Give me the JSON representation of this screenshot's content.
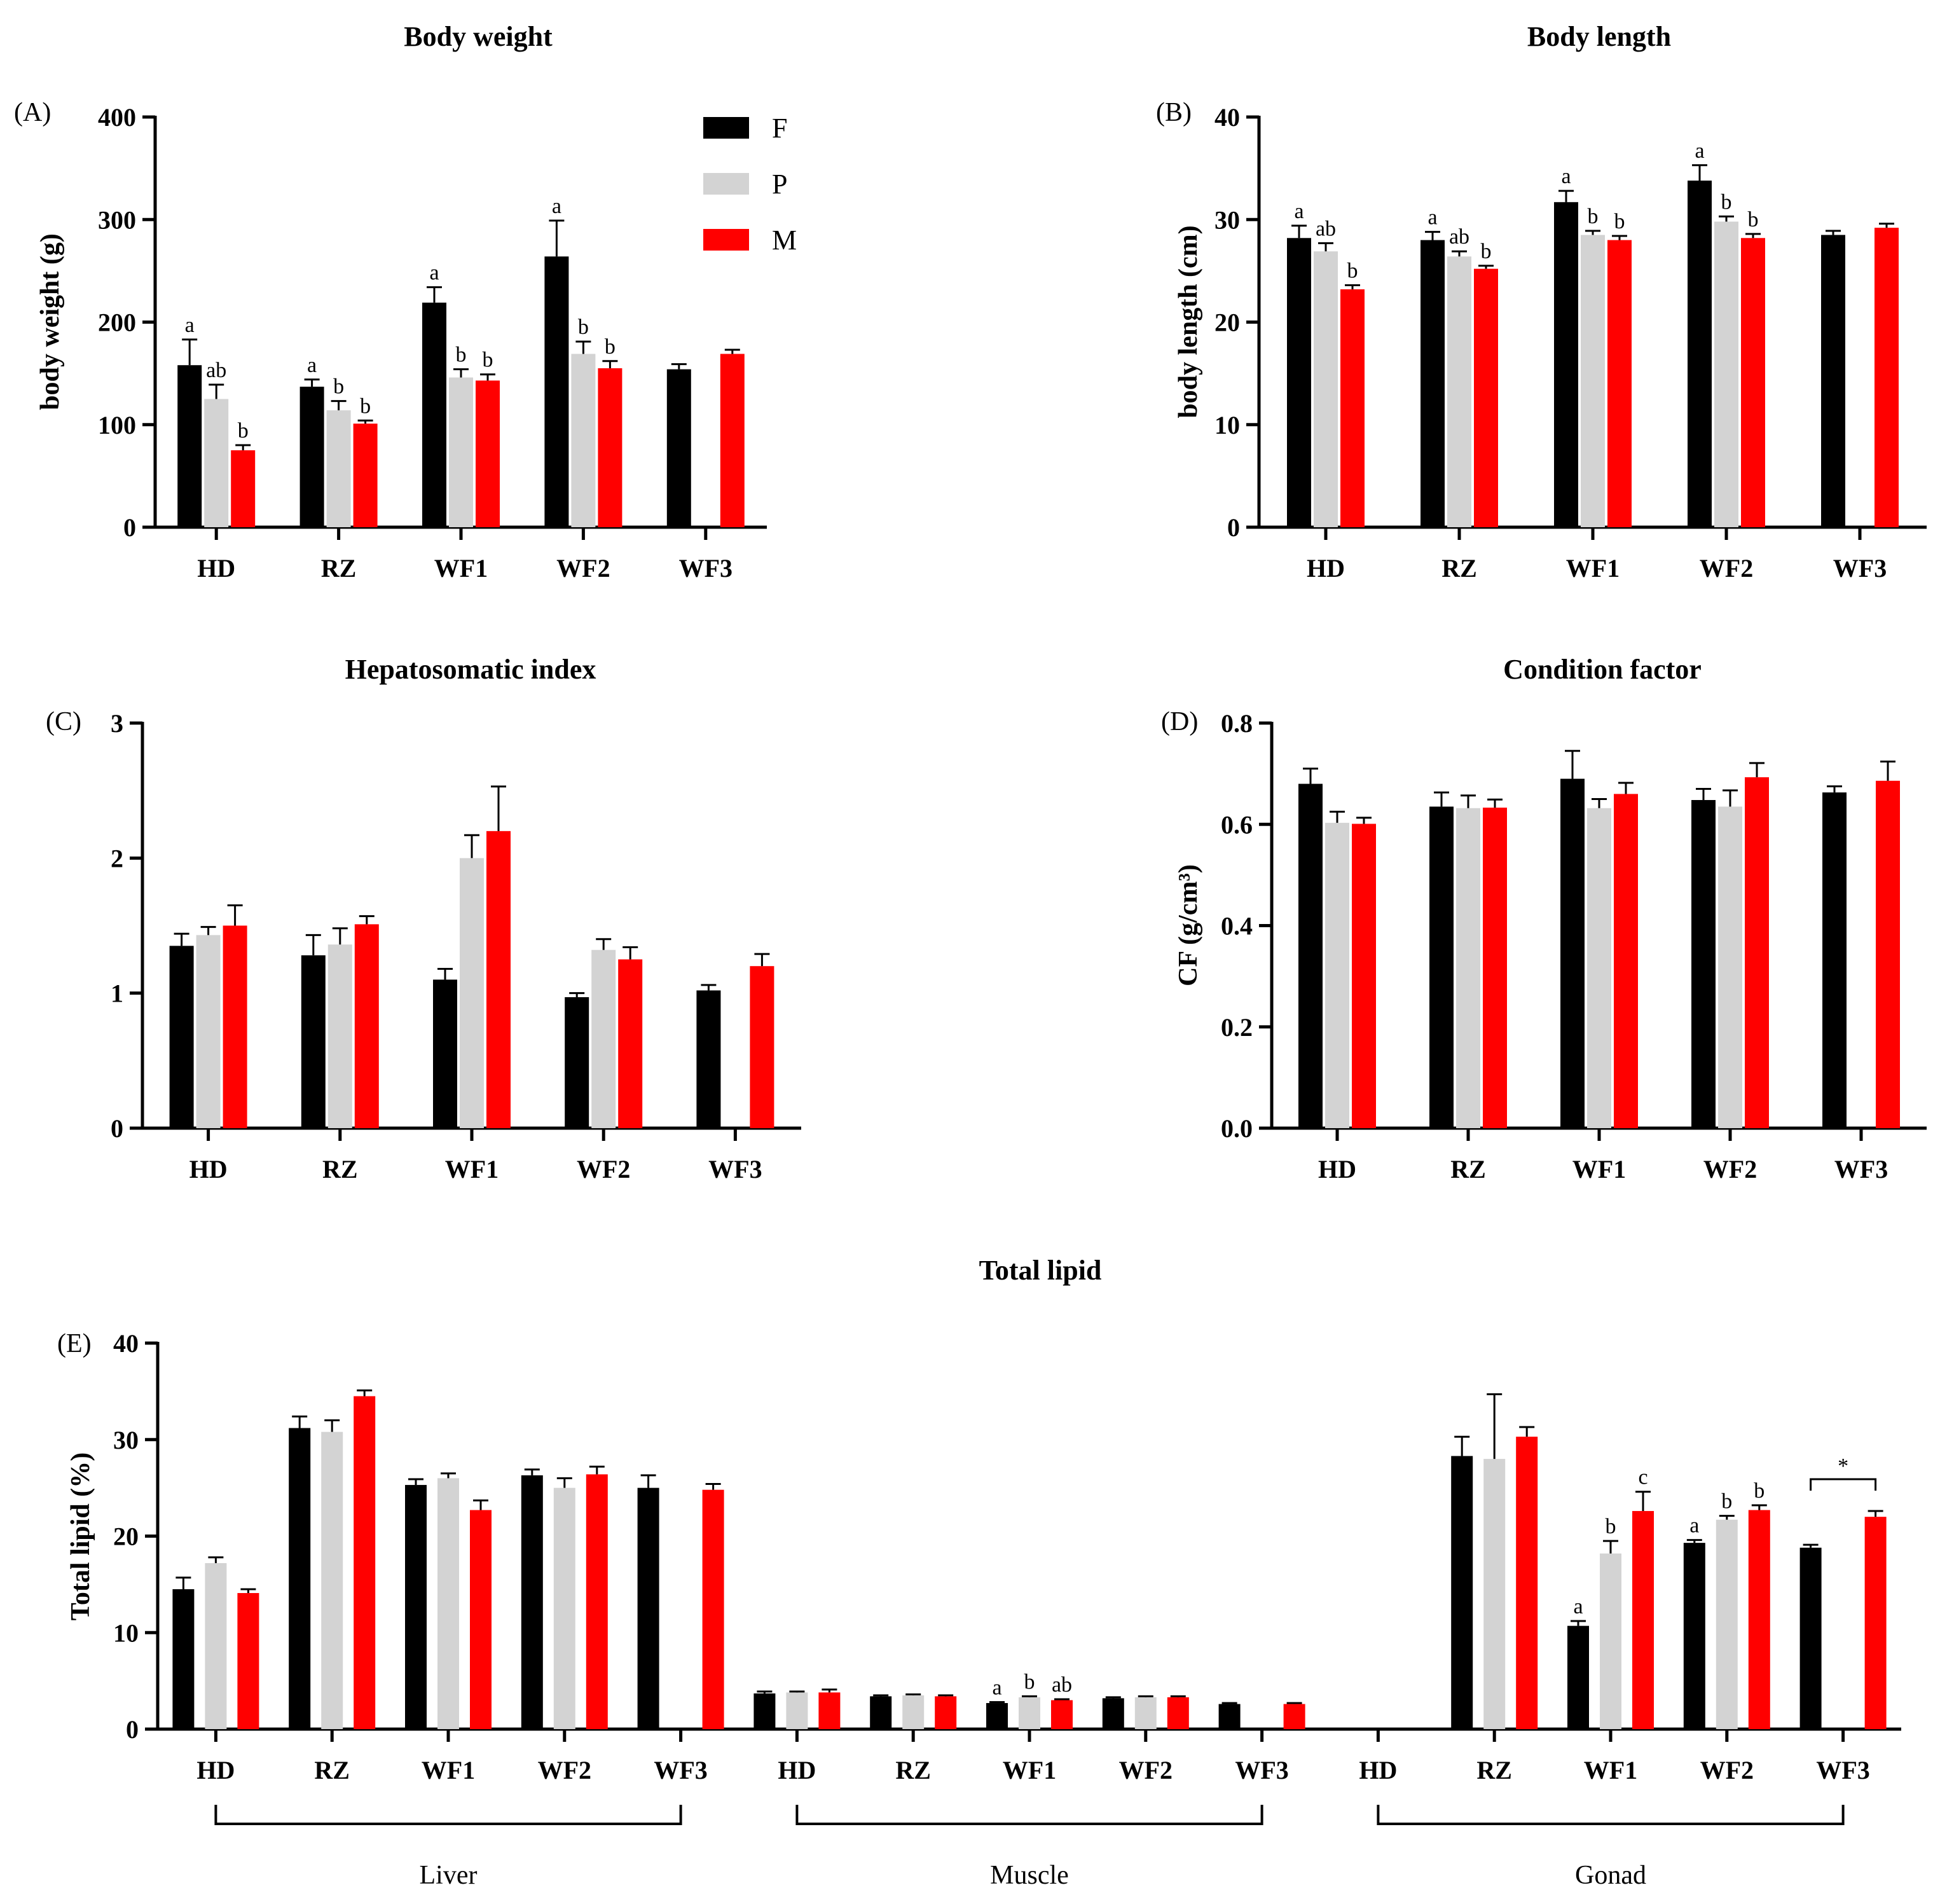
{
  "legend": {
    "items": [
      {
        "label": "F",
        "color": "#000000"
      },
      {
        "label": "P",
        "color": "#d3d3d3"
      },
      {
        "label": "M",
        "color": "#ff0000"
      }
    ]
  },
  "chart_data": [
    {
      "id": "A",
      "panel_label": "(A)",
      "type": "bar",
      "title": "Body weight",
      "xlabel": "",
      "ylabel": "body weight (g)",
      "ylim": [
        0,
        400
      ],
      "yticks": [
        "0",
        "100",
        "200",
        "300",
        "400"
      ],
      "categories": [
        "HD",
        "RZ",
        "WF1",
        "WF2",
        "WF3"
      ],
      "series": [
        {
          "name": "F",
          "values": [
            158,
            137,
            219,
            264,
            154
          ],
          "errors": [
            25,
            7,
            15,
            35,
            5
          ]
        },
        {
          "name": "P",
          "values": [
            125,
            114,
            146,
            169,
            null
          ],
          "errors": [
            14,
            9,
            8,
            12,
            null
          ]
        },
        {
          "name": "M",
          "values": [
            75,
            101,
            143,
            155,
            169
          ],
          "errors": [
            5,
            3,
            6,
            7,
            4
          ]
        }
      ],
      "annotations": [
        [
          "a",
          "ab",
          "b"
        ],
        [
          "a",
          "b",
          "b"
        ],
        [
          "a",
          "b",
          "b"
        ],
        [
          "a",
          "b",
          "b"
        ],
        [
          "",
          "",
          ""
        ]
      ]
    },
    {
      "id": "B",
      "panel_label": "(B)",
      "type": "bar",
      "title": "Body length",
      "xlabel": "",
      "ylabel": "body length (cm)",
      "ylim": [
        0,
        40
      ],
      "yticks": [
        "0",
        "10",
        "20",
        "30",
        "40"
      ],
      "categories": [
        "HD",
        "RZ",
        "WF1",
        "WF2",
        "WF3"
      ],
      "series": [
        {
          "name": "F",
          "values": [
            28.2,
            28.0,
            31.7,
            33.8,
            28.5
          ],
          "errors": [
            1.2,
            0.8,
            1.1,
            1.5,
            0.4
          ]
        },
        {
          "name": "P",
          "values": [
            26.9,
            26.4,
            28.5,
            29.8,
            null
          ],
          "errors": [
            0.8,
            0.5,
            0.4,
            0.5,
            null
          ]
        },
        {
          "name": "M",
          "values": [
            23.2,
            25.2,
            28.0,
            28.2,
            29.2
          ],
          "errors": [
            0.4,
            0.3,
            0.4,
            0.4,
            0.4
          ]
        }
      ],
      "annotations": [
        [
          "a",
          "ab",
          "b"
        ],
        [
          "a",
          "ab",
          "b"
        ],
        [
          "a",
          "b",
          "b"
        ],
        [
          "a",
          "b",
          "b"
        ],
        [
          "",
          "",
          ""
        ]
      ]
    },
    {
      "id": "C",
      "panel_label": "(C)",
      "type": "bar",
      "title": "Hepatosomatic index",
      "xlabel": "",
      "ylabel": "",
      "ylim": [
        0,
        3
      ],
      "yticks": [
        "0",
        "1",
        "2",
        "3"
      ],
      "categories": [
        "HD",
        "RZ",
        "WF1",
        "WF2",
        "WF3"
      ],
      "series": [
        {
          "name": "F",
          "values": [
            1.35,
            1.28,
            1.1,
            0.97,
            1.02
          ],
          "errors": [
            0.09,
            0.15,
            0.08,
            0.03,
            0.04
          ]
        },
        {
          "name": "P",
          "values": [
            1.43,
            1.36,
            2.0,
            1.32,
            null
          ],
          "errors": [
            0.06,
            0.12,
            0.17,
            0.08,
            null
          ]
        },
        {
          "name": "M",
          "values": [
            1.5,
            1.51,
            2.2,
            1.25,
            1.2
          ],
          "errors": [
            0.15,
            0.06,
            0.33,
            0.09,
            0.09
          ]
        }
      ],
      "annotations": [
        [
          "",
          "",
          ""
        ],
        [
          "",
          "",
          ""
        ],
        [
          "",
          "",
          ""
        ],
        [
          "",
          "",
          ""
        ],
        [
          "",
          "",
          ""
        ]
      ]
    },
    {
      "id": "D",
      "panel_label": "(D)",
      "type": "bar",
      "title": "Condition factor",
      "xlabel": "",
      "ylabel": "CF (g/cm³)",
      "ylim": [
        0,
        0.8
      ],
      "yticks": [
        "0.0",
        "0.2",
        "0.4",
        "0.6",
        "0.8"
      ],
      "categories": [
        "HD",
        "RZ",
        "WF1",
        "WF2",
        "WF3"
      ],
      "series": [
        {
          "name": "F",
          "values": [
            0.68,
            0.635,
            0.69,
            0.648,
            0.663
          ],
          "errors": [
            0.03,
            0.028,
            0.055,
            0.022,
            0.012
          ]
        },
        {
          "name": "P",
          "values": [
            0.603,
            0.632,
            0.632,
            0.635,
            null
          ],
          "errors": [
            0.022,
            0.025,
            0.018,
            0.032,
            null
          ]
        },
        {
          "name": "M",
          "values": [
            0.601,
            0.633,
            0.66,
            0.693,
            0.686
          ],
          "errors": [
            0.012,
            0.016,
            0.022,
            0.028,
            0.038
          ]
        }
      ],
      "annotations": [
        [
          "",
          "",
          ""
        ],
        [
          "",
          "",
          ""
        ],
        [
          "",
          "",
          ""
        ],
        [
          "",
          "",
          ""
        ],
        [
          "",
          "",
          ""
        ]
      ]
    },
    {
      "id": "E",
      "panel_label": "(E)",
      "type": "bar",
      "title": "Total lipid",
      "xlabel": "",
      "ylabel": "Total lipid (%)",
      "ylim": [
        0,
        40
      ],
      "yticks": [
        "0",
        "10",
        "20",
        "30",
        "40"
      ],
      "categories": [
        "HD",
        "RZ",
        "WF1",
        "WF2",
        "WF3",
        "HD",
        "RZ",
        "WF1",
        "WF2",
        "WF3",
        "HD",
        "RZ",
        "WF1",
        "WF2",
        "WF3"
      ],
      "groups": [
        {
          "label": "Liver",
          "start": 0,
          "end": 4
        },
        {
          "label": "Muscle",
          "start": 5,
          "end": 9
        },
        {
          "label": "Gonad",
          "start": 10,
          "end": 14
        }
      ],
      "series": [
        {
          "name": "F",
          "values": [
            14.5,
            31.2,
            25.3,
            26.3,
            25.0,
            3.7,
            3.4,
            2.7,
            3.2,
            2.6,
            null,
            28.3,
            10.7,
            19.3,
            18.8
          ],
          "errors": [
            1.2,
            1.2,
            0.6,
            0.6,
            1.3,
            0.2,
            0.1,
            0.1,
            0.1,
            0.1,
            null,
            2.0,
            0.5,
            0.3,
            0.3
          ]
        },
        {
          "name": "P",
          "values": [
            17.2,
            30.8,
            26.0,
            25.0,
            null,
            3.8,
            3.5,
            3.3,
            3.3,
            null,
            null,
            28.0,
            18.2,
            21.7,
            null
          ],
          "errors": [
            0.6,
            1.2,
            0.5,
            1.0,
            null,
            0.1,
            0.1,
            0.1,
            0.1,
            null,
            null,
            6.7,
            1.3,
            0.4,
            null
          ]
        },
        {
          "name": "M",
          "values": [
            14.1,
            34.5,
            22.7,
            26.4,
            24.8,
            3.8,
            3.4,
            3.0,
            3.3,
            2.6,
            null,
            30.3,
            22.6,
            22.7,
            22.0
          ],
          "errors": [
            0.4,
            0.6,
            1.0,
            0.8,
            0.6,
            0.3,
            0.1,
            0.1,
            0.1,
            0.1,
            null,
            1.0,
            2.0,
            0.5,
            0.6
          ]
        }
      ],
      "annotations": [
        [
          "",
          "",
          ""
        ],
        [
          "",
          "",
          ""
        ],
        [
          "",
          "",
          ""
        ],
        [
          "",
          "",
          ""
        ],
        [
          "",
          "",
          ""
        ],
        [
          "",
          "",
          ""
        ],
        [
          "",
          "",
          ""
        ],
        [
          "a",
          "b",
          "ab"
        ],
        [
          "",
          "",
          ""
        ],
        [
          "",
          "",
          ""
        ],
        [
          "",
          "",
          ""
        ],
        [
          "",
          "",
          ""
        ],
        [
          "a",
          "b",
          "c"
        ],
        [
          "a",
          "b",
          "b"
        ],
        [
          "",
          "",
          ""
        ]
      ],
      "star_bracket": {
        "category": 14,
        "from_series": 0,
        "to_series": 2,
        "label": "*"
      }
    }
  ]
}
